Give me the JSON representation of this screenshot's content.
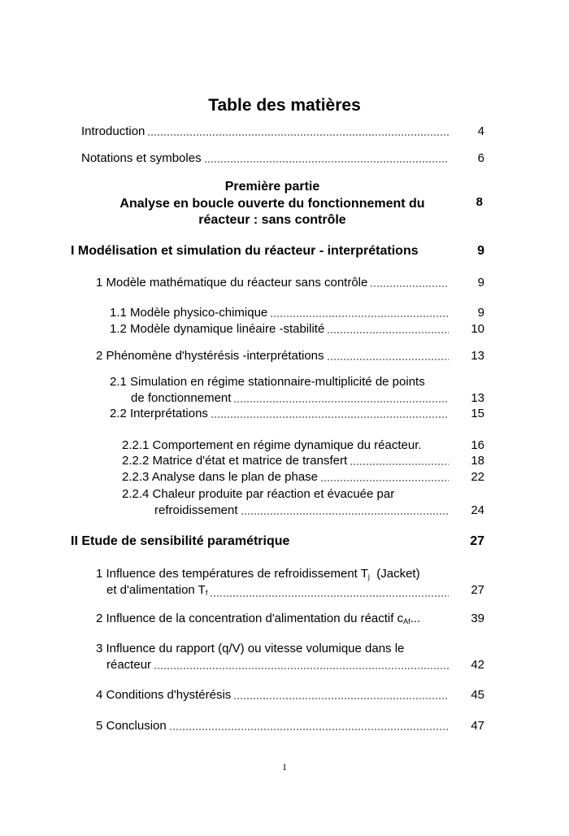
{
  "title": "Table des matières",
  "entries": [
    {
      "label": "Introduction",
      "page": "4"
    },
    {
      "label": "Notations et symboles",
      "page": "6"
    },
    {
      "label": "I Modélisation et simulation du réacteur - interprétations",
      "page": "9"
    },
    {
      "label": "1 Modèle mathématique du réacteur sans contrôle",
      "page": "9"
    },
    {
      "label": "1.1 Modèle physico-chimique",
      "page": "9"
    },
    {
      "label": "1.2 Modèle dynamique linéaire -stabilité",
      "page": "10"
    },
    {
      "label": "2 Phénomène d'hystérésis -interprétations",
      "page": "13"
    },
    {
      "label": "2.1 Simulation en régime stationnaire-multiplicité de points",
      "label2": "de  fonctionnement",
      "page": "13"
    },
    {
      "label": "2.2 Interprétations",
      "page": "15"
    },
    {
      "label": "2.2.1 Comportement en régime dynamique du réacteur.",
      "page": "16"
    },
    {
      "label": "2.2.2 Matrice d'état et matrice de transfert",
      "page": "18"
    },
    {
      "label": "2.2.3 Analyse dans le plan de phase",
      "page": "22"
    },
    {
      "label": "2.2.4 Chaleur produite par réaction et évacuée par",
      "label2": "refroidissement",
      "page": "24"
    },
    {
      "label": "II Etude de sensibilité paramétrique",
      "page": "27"
    },
    {
      "label": "1 Influence  des températures de refroidissement T",
      "sub": "j",
      "label_tail": "  (Jacket)",
      "label2": "et d'alimentation T",
      "sub2": "f",
      "page": "27"
    },
    {
      "label": "2 Influence de la concentration d'alimentation du réactif c",
      "sub": "Af",
      "label_tail": "...",
      "page": "39"
    },
    {
      "label": "3 Influence du rapport (q/V) ou vitesse volumique dans le",
      "label2": "réacteur",
      "page": "42"
    },
    {
      "label": "4 Conditions d'hystérésis",
      "page": "45"
    },
    {
      "label": "5 Conclusion",
      "page": "47"
    }
  ],
  "part": {
    "line1": "Première partie",
    "line2": "Analyse en boucle ouverte du fonctionnement  du",
    "line3": "réacteur : sans contrôle",
    "page": "8"
  },
  "footer": {
    "page_number": "1"
  }
}
